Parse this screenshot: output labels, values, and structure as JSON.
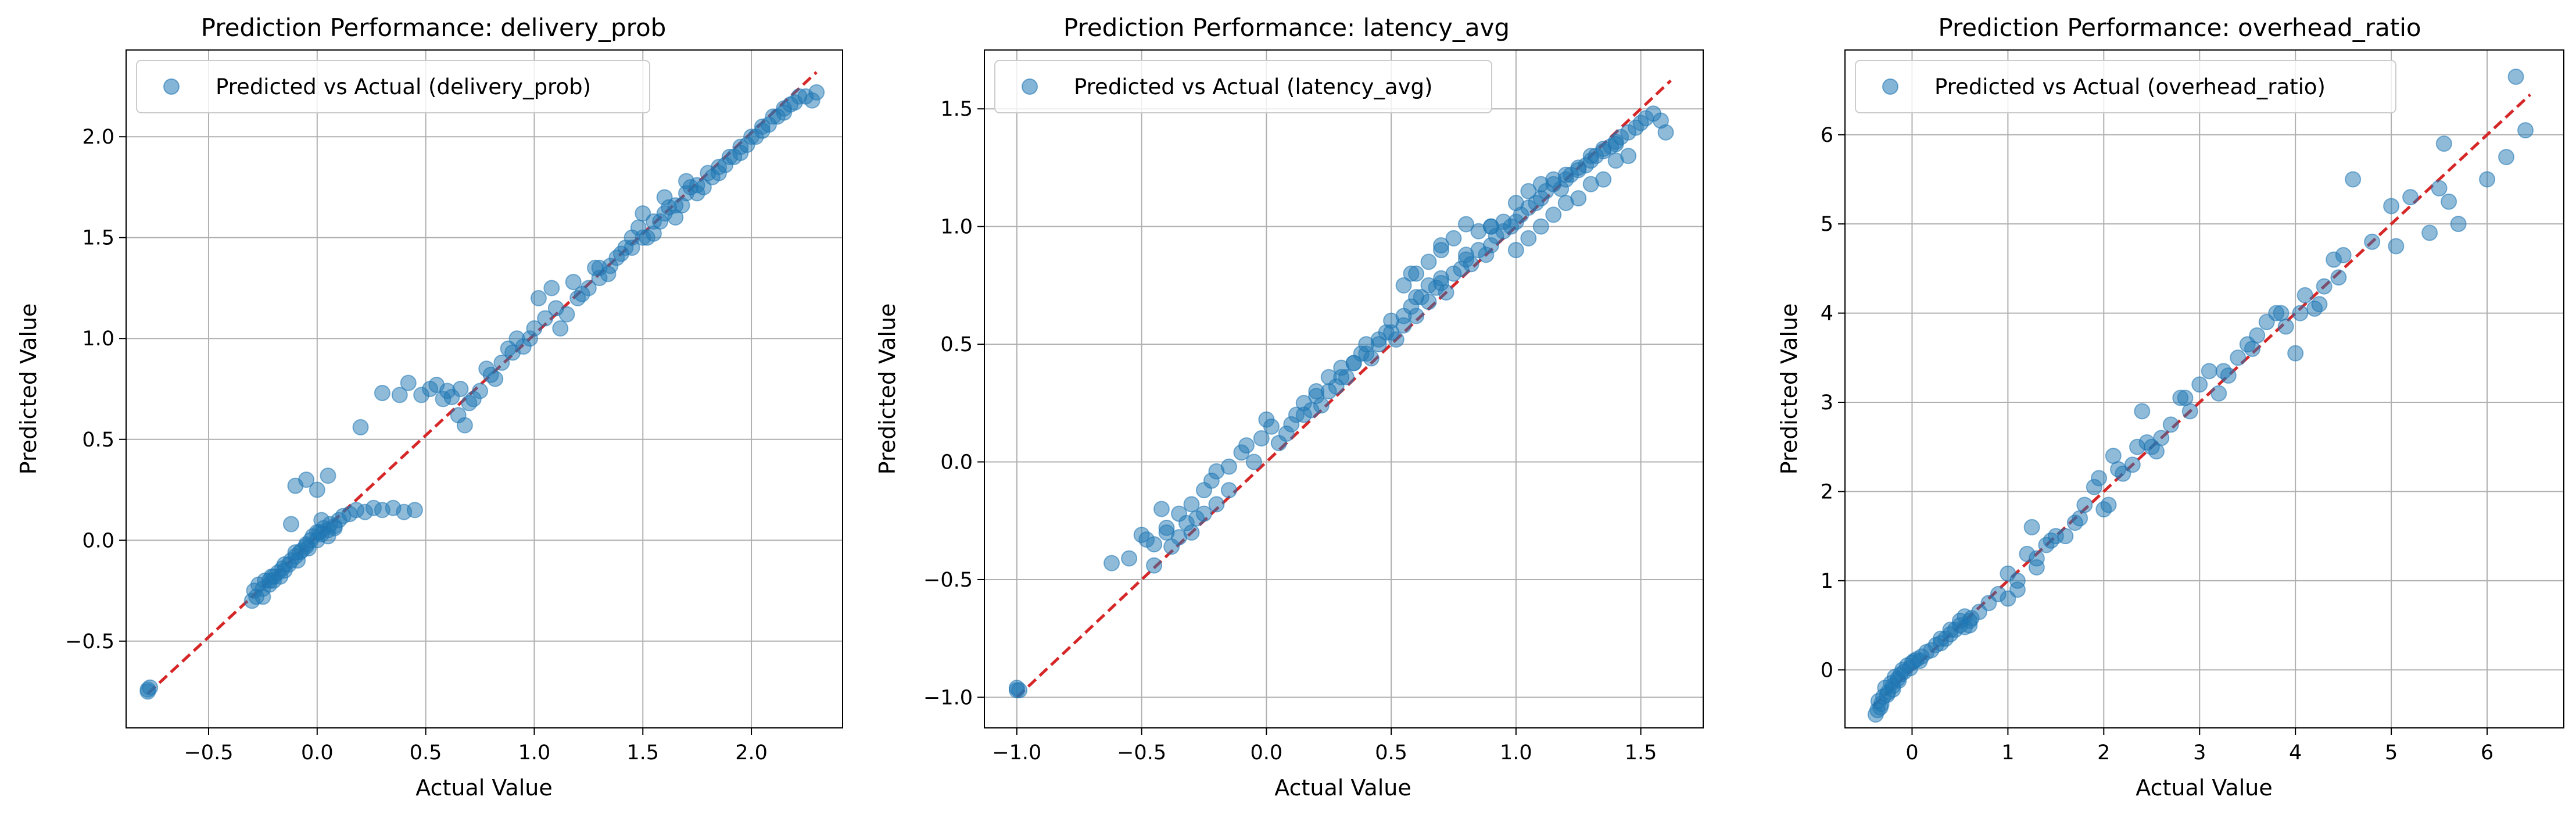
{
  "colors": {
    "points": "#1f77b4",
    "ideal_line": "#d62728",
    "grid": "#b0b0b0",
    "legend_border": "#cccccc"
  },
  "chart_data": [
    {
      "type": "scatter",
      "title": "Prediction Performance: delivery_prob",
      "xlabel": "Actual Value",
      "ylabel": "Predicted Value",
      "legend": "Predicted vs Actual (delivery_prob)",
      "legend_position": "top-left",
      "grid": true,
      "xlim": [
        -0.88,
        2.42
      ],
      "ylim": [
        -0.93,
        2.43
      ],
      "xticks": [
        -0.5,
        0.0,
        0.5,
        1.0,
        1.5,
        2.0
      ],
      "xtick_labels": [
        "−0.5",
        "0.0",
        "0.5",
        "1.0",
        "1.5",
        "2.0"
      ],
      "yticks": [
        -0.5,
        0.0,
        0.5,
        1.0,
        1.5,
        2.0
      ],
      "ytick_labels": [
        "−0.5",
        "0.0",
        "0.5",
        "1.0",
        "1.5",
        "2.0"
      ],
      "ideal_line": [
        [
          -0.78,
          -0.76
        ],
        [
          2.3,
          2.32
        ]
      ],
      "x": [
        -0.78,
        -0.77,
        -0.78,
        -0.3,
        -0.29,
        -0.28,
        -0.27,
        -0.25,
        -0.24,
        -0.22,
        -0.21,
        -0.2,
        -0.18,
        -0.17,
        -0.16,
        -0.15,
        -0.13,
        -0.12,
        -0.1,
        -0.09,
        -0.08,
        -0.07,
        -0.05,
        -0.04,
        -0.03,
        -0.02,
        0.0,
        0.01,
        0.02,
        0.03,
        0.05,
        0.06,
        0.08,
        0.1,
        0.12,
        0.15,
        0.18,
        0.22,
        0.26,
        0.3,
        0.35,
        0.4,
        0.45,
        -0.25,
        -0.2,
        -0.15,
        -0.1,
        -0.05,
        0.0,
        0.05,
        -0.22,
        -0.12,
        0.02,
        0.08,
        -0.1,
        -0.05,
        0.0,
        0.05,
        0.2,
        0.3,
        0.38,
        0.42,
        0.48,
        0.52,
        0.55,
        0.6,
        0.62,
        0.65,
        0.68,
        0.7,
        0.75,
        0.8,
        0.85,
        0.9,
        0.95,
        1.0,
        1.05,
        1.1,
        1.15,
        1.2,
        1.25,
        1.3,
        1.35,
        1.4,
        1.45,
        1.5,
        1.55,
        1.6,
        1.65,
        1.7,
        1.75,
        1.8,
        1.85,
        1.9,
        1.95,
        2.0,
        2.05,
        2.1,
        2.15,
        2.2,
        2.25,
        2.28,
        2.3,
        1.5,
        1.6,
        1.7,
        1.55,
        1.65,
        1.75,
        1.85,
        1.95,
        2.05,
        2.15,
        1.45,
        1.58,
        1.68,
        1.78,
        1.88,
        1.98,
        2.08,
        2.18,
        1.3,
        1.38,
        1.42,
        1.62,
        1.72,
        1.82,
        1.92,
        2.02,
        2.12,
        2.22,
        0.98,
        1.02,
        1.08,
        1.12,
        0.88,
        0.92,
        0.78,
        0.82,
        0.72,
        0.66,
        0.58,
        1.18,
        1.22,
        1.28,
        1.34,
        1.48,
        1.52
      ],
      "y": [
        -0.74,
        -0.73,
        -0.75,
        -0.3,
        -0.25,
        -0.28,
        -0.22,
        -0.24,
        -0.2,
        -0.22,
        -0.18,
        -0.2,
        -0.16,
        -0.18,
        -0.14,
        -0.15,
        -0.12,
        -0.1,
        -0.08,
        -0.1,
        -0.06,
        -0.05,
        -0.03,
        -0.04,
        0.0,
        0.02,
        0.0,
        0.04,
        0.03,
        0.06,
        0.05,
        0.08,
        0.07,
        0.1,
        0.12,
        0.13,
        0.15,
        0.14,
        0.16,
        0.15,
        0.16,
        0.14,
        0.15,
        -0.28,
        -0.18,
        -0.12,
        -0.06,
        -0.02,
        0.04,
        0.02,
        -0.2,
        0.08,
        0.1,
        0.06,
        0.27,
        0.3,
        0.25,
        0.32,
        0.56,
        0.73,
        0.72,
        0.78,
        0.72,
        0.75,
        0.77,
        0.74,
        0.71,
        0.62,
        0.57,
        0.68,
        0.74,
        0.82,
        0.88,
        0.93,
        0.96,
        1.05,
        1.1,
        1.15,
        1.12,
        1.2,
        1.25,
        1.3,
        1.36,
        1.42,
        1.45,
        1.5,
        1.58,
        1.62,
        1.66,
        1.72,
        1.76,
        1.82,
        1.85,
        1.9,
        1.95,
        2.0,
        2.05,
        2.1,
        2.14,
        2.17,
        2.2,
        2.18,
        2.22,
        1.62,
        1.7,
        1.78,
        1.52,
        1.6,
        1.72,
        1.82,
        1.92,
        2.03,
        2.12,
        1.5,
        1.58,
        1.66,
        1.75,
        1.86,
        1.96,
        2.06,
        2.16,
        1.35,
        1.4,
        1.45,
        1.65,
        1.75,
        1.8,
        1.9,
        2.0,
        2.1,
        2.2,
        1.0,
        1.2,
        1.25,
        1.05,
        0.95,
        1.0,
        0.85,
        0.8,
        0.7,
        0.75,
        0.7,
        1.28,
        1.22,
        1.35,
        1.32,
        1.55,
        1.5
      ]
    },
    {
      "type": "scatter",
      "title": "Prediction Performance: latency_avg",
      "xlabel": "Actual Value",
      "ylabel": "Predicted Value",
      "legend": "Predicted vs Actual (latency_avg)",
      "legend_position": "top-left",
      "grid": true,
      "xlim": [
        -1.13,
        1.75
      ],
      "ylim": [
        -1.13,
        1.75
      ],
      "xticks": [
        -1.0,
        -0.5,
        0.0,
        0.5,
        1.0,
        1.5
      ],
      "xtick_labels": [
        "−1.0",
        "−0.5",
        "0.0",
        "0.5",
        "1.0",
        "1.5"
      ],
      "yticks": [
        -1.0,
        -0.5,
        0.0,
        0.5,
        1.0,
        1.5
      ],
      "ytick_labels": [
        "−1.0",
        "−0.5",
        "0.0",
        "0.5",
        "1.0",
        "1.5"
      ],
      "ideal_line": [
        [
          -1.0,
          -1.0
        ],
        [
          1.62,
          1.62
        ]
      ],
      "x": [
        -1.0,
        -1.0,
        -0.99,
        -0.62,
        -0.55,
        -0.5,
        -0.48,
        -0.45,
        -0.42,
        -0.4,
        -0.38,
        -0.35,
        -0.32,
        -0.3,
        -0.28,
        -0.25,
        -0.22,
        -0.2,
        -0.15,
        -0.1,
        -0.08,
        -0.05,
        -0.02,
        0.0,
        0.02,
        0.05,
        0.08,
        0.1,
        0.12,
        0.15,
        0.18,
        0.2,
        0.22,
        0.25,
        0.28,
        0.3,
        0.32,
        0.35,
        0.38,
        0.4,
        0.42,
        0.45,
        0.48,
        0.5,
        0.52,
        0.55,
        0.58,
        0.6,
        0.62,
        0.65,
        0.68,
        0.7,
        0.72,
        0.75,
        0.78,
        0.8,
        0.82,
        0.85,
        0.88,
        0.9,
        0.92,
        0.95,
        0.98,
        1.0,
        1.02,
        1.05,
        1.08,
        1.1,
        1.12,
        1.15,
        1.18,
        1.2,
        1.22,
        1.25,
        1.28,
        1.3,
        1.32,
        1.35,
        1.38,
        1.4,
        1.42,
        1.45,
        1.48,
        1.5,
        1.52,
        1.55,
        1.58,
        1.6,
        0.7,
        0.75,
        0.8,
        0.85,
        0.9,
        0.95,
        1.0,
        1.05,
        1.1,
        1.15,
        1.2,
        1.25,
        1.3,
        1.35,
        1.4,
        0.5,
        0.55,
        0.6,
        0.65,
        0.7,
        1.0,
        1.05,
        1.1,
        1.15,
        1.2,
        1.25,
        1.3,
        1.35,
        1.4,
        1.45,
        0.25,
        0.3,
        0.35,
        0.4,
        0.45,
        -0.45,
        -0.4,
        -0.35,
        -0.3,
        -0.25,
        -0.2,
        -0.15,
        0.15,
        0.2,
        0.6,
        0.65,
        0.7,
        0.8,
        0.9,
        0.55,
        0.58
      ],
      "y": [
        -0.97,
        -0.96,
        -0.97,
        -0.43,
        -0.41,
        -0.31,
        -0.33,
        -0.44,
        -0.2,
        -0.3,
        -0.36,
        -0.22,
        -0.26,
        -0.18,
        -0.24,
        -0.12,
        -0.08,
        -0.04,
        -0.02,
        0.04,
        0.07,
        0.0,
        0.1,
        0.18,
        0.15,
        0.08,
        0.12,
        0.16,
        0.2,
        0.25,
        0.22,
        0.3,
        0.24,
        0.36,
        0.32,
        0.4,
        0.36,
        0.42,
        0.46,
        0.5,
        0.44,
        0.52,
        0.55,
        0.6,
        0.52,
        0.58,
        0.66,
        0.62,
        0.7,
        0.68,
        0.74,
        0.76,
        0.72,
        0.8,
        0.82,
        0.86,
        0.84,
        0.9,
        0.88,
        0.92,
        0.96,
        0.98,
        1.0,
        1.02,
        1.05,
        1.08,
        1.1,
        1.12,
        1.15,
        1.18,
        1.16,
        1.2,
        1.22,
        1.24,
        1.26,
        1.28,
        1.3,
        1.32,
        1.34,
        1.36,
        1.38,
        1.4,
        1.42,
        1.44,
        1.46,
        1.48,
        1.45,
        1.4,
        0.9,
        0.95,
        0.88,
        0.98,
        1.0,
        1.02,
        1.1,
        1.15,
        1.18,
        1.2,
        1.22,
        1.25,
        1.3,
        1.33,
        1.35,
        0.55,
        0.62,
        0.7,
        0.75,
        0.78,
        0.9,
        0.95,
        1.0,
        1.05,
        1.1,
        1.12,
        1.18,
        1.2,
        1.28,
        1.3,
        0.3,
        0.36,
        0.42,
        0.46,
        0.5,
        -0.35,
        -0.28,
        -0.32,
        -0.3,
        -0.22,
        -0.18,
        -0.12,
        0.2,
        0.28,
        0.8,
        0.85,
        0.92,
        1.01,
        1.0,
        0.75,
        0.8
      ]
    },
    {
      "type": "scatter",
      "title": "Prediction Performance: overhead_ratio",
      "xlabel": "Actual Value",
      "ylabel": "Predicted Value",
      "legend": "Predicted vs Actual (overhead_ratio)",
      "legend_position": "top-left",
      "grid": true,
      "xlim": [
        -0.7,
        6.8
      ],
      "ylim": [
        -0.65,
        6.95
      ],
      "xticks": [
        0,
        1,
        2,
        3,
        4,
        5,
        6
      ],
      "xtick_labels": [
        "0",
        "1",
        "2",
        "3",
        "4",
        "5",
        "6"
      ],
      "yticks": [
        0,
        1,
        2,
        3,
        4,
        5,
        6
      ],
      "ytick_labels": [
        "0",
        "1",
        "2",
        "3",
        "4",
        "5",
        "6"
      ],
      "ideal_line": [
        [
          -0.4,
          -0.4
        ],
        [
          6.45,
          6.45
        ]
      ],
      "x": [
        -0.38,
        -0.35,
        -0.33,
        -0.3,
        -0.28,
        -0.25,
        -0.22,
        -0.2,
        -0.18,
        -0.15,
        -0.12,
        -0.1,
        -0.08,
        -0.05,
        -0.02,
        0.0,
        0.02,
        0.05,
        0.08,
        0.1,
        0.15,
        0.2,
        0.25,
        0.3,
        0.35,
        0.4,
        0.45,
        0.5,
        0.55,
        0.6,
        0.7,
        0.8,
        0.9,
        1.0,
        1.1,
        1.2,
        1.25,
        1.3,
        1.4,
        1.5,
        1.6,
        1.7,
        1.8,
        1.9,
        2.0,
        2.1,
        2.2,
        2.3,
        2.4,
        2.5,
        2.6,
        2.7,
        2.8,
        2.9,
        3.0,
        3.1,
        3.2,
        3.3,
        3.4,
        3.5,
        3.6,
        3.7,
        3.8,
        3.9,
        4.0,
        4.1,
        4.2,
        4.3,
        4.4,
        4.5,
        4.6,
        4.8,
        5.0,
        5.05,
        5.2,
        5.4,
        5.5,
        5.6,
        5.7,
        6.0,
        6.2,
        6.3,
        6.4,
        -0.36,
        -0.32,
        -0.26,
        -0.2,
        -0.14,
        0.3,
        0.4,
        0.5,
        0.55,
        1.0,
        1.1,
        1.45,
        1.75,
        2.05,
        2.15,
        2.45,
        2.55,
        2.85,
        3.25,
        3.55,
        3.85,
        4.05,
        4.25,
        4.45,
        5.55,
        0.6,
        0.62,
        1.3,
        1.95,
        2.35
      ],
      "y": [
        -0.5,
        -0.35,
        -0.42,
        -0.3,
        -0.2,
        -0.25,
        -0.15,
        -0.18,
        -0.08,
        -0.1,
        -0.05,
        0.0,
        -0.02,
        0.05,
        0.02,
        0.08,
        0.1,
        0.12,
        0.1,
        0.15,
        0.2,
        0.22,
        0.28,
        0.3,
        0.35,
        0.4,
        0.45,
        0.5,
        0.48,
        0.55,
        0.65,
        0.75,
        0.85,
        1.08,
        0.9,
        1.3,
        1.6,
        1.15,
        1.4,
        1.5,
        1.5,
        1.65,
        1.85,
        2.05,
        1.8,
        2.4,
        2.2,
        2.3,
        2.9,
        2.5,
        2.6,
        2.75,
        3.05,
        2.9,
        3.2,
        3.35,
        3.1,
        3.3,
        3.5,
        3.65,
        3.75,
        3.9,
        4.0,
        3.85,
        3.55,
        4.2,
        4.05,
        4.3,
        4.6,
        4.65,
        5.5,
        4.8,
        5.2,
        4.75,
        5.3,
        4.9,
        5.4,
        5.25,
        5.0,
        5.5,
        5.75,
        6.65,
        6.05,
        -0.45,
        -0.38,
        -0.28,
        -0.22,
        -0.12,
        0.35,
        0.45,
        0.55,
        0.6,
        0.8,
        1.0,
        1.45,
        1.7,
        1.85,
        2.25,
        2.55,
        2.45,
        3.05,
        3.35,
        3.6,
        4.0,
        4.0,
        4.1,
        4.4,
        5.9,
        0.5,
        0.58,
        1.25,
        2.15,
        2.5
      ]
    }
  ]
}
